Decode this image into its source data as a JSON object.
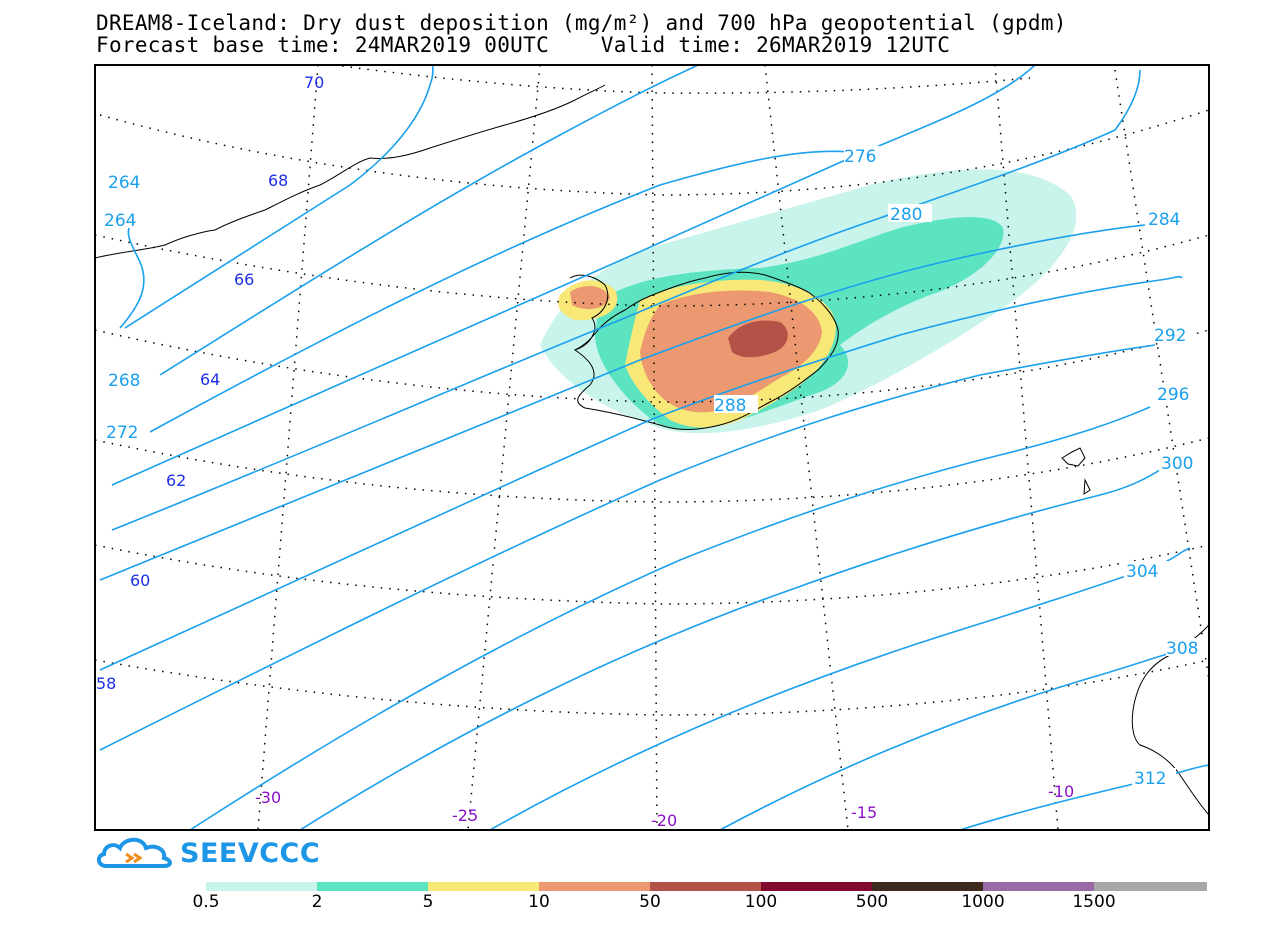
{
  "title": {
    "line1": "DREAM8-Iceland: Dry dust deposition (mg/m²) and 700 hPa geopotential (gpdm)",
    "line2": "Forecast base time: 24MAR2019 00UTC    Valid time: 26MAR2019 12UTC"
  },
  "map": {
    "geopotential_unit": "gpdm",
    "contour_labels": [
      "264",
      "264",
      "268",
      "272",
      "276",
      "280",
      "284",
      "288",
      "292",
      "296",
      "300",
      "304",
      "308",
      "312"
    ],
    "latitude_labels": [
      "70",
      "68",
      "66",
      "64",
      "62",
      "60",
      "58"
    ],
    "longitude_labels": [
      "-30",
      "-25",
      "-20",
      "-15",
      "-10"
    ],
    "colors": {
      "contour": "#1aa0ee",
      "latitude_label": "#1e2fe6",
      "longitude_label": "#8a10c8",
      "frame": "#000000"
    }
  },
  "logo": {
    "text": "SEEVCCC",
    "color": "#1e96e6"
  },
  "colorbar": {
    "unit": "mg/m²",
    "segments": [
      {
        "color": "#c8f4ec"
      },
      {
        "color": "#5ce4c0"
      },
      {
        "color": "#f8e878"
      },
      {
        "color": "#ec9870"
      },
      {
        "color": "#b45248"
      },
      {
        "color": "#820a2e"
      },
      {
        "color": "#3c2a1e"
      },
      {
        "color": "#9a6aa6"
      },
      {
        "color": "#a8a8a8"
      }
    ],
    "labels": [
      "0.5",
      "2",
      "5",
      "10",
      "50",
      "100",
      "500",
      "1000",
      "1500"
    ]
  }
}
